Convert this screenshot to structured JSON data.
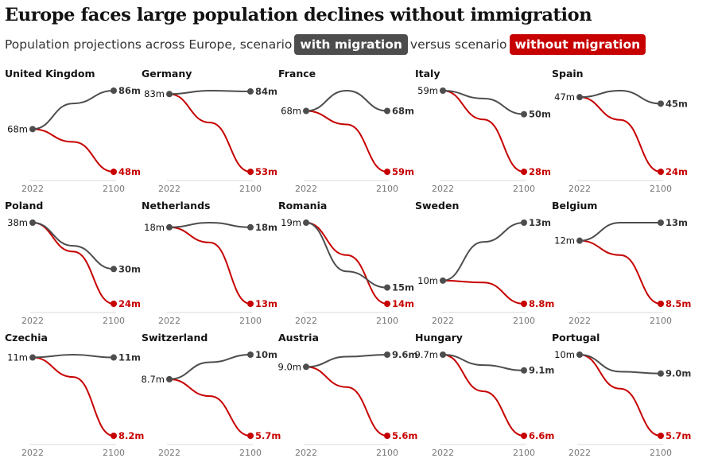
{
  "headline": "Europe faces large population declines without immigration",
  "subtitle": {
    "prefix": "Population projections across Europe, scenario",
    "with_label": "with migration",
    "middle": "versus scenario",
    "without_label": "without migration"
  },
  "colors": {
    "with_migration": "#4d4d4d",
    "without_migration": "#c70000",
    "axis": "#d9d9d9",
    "label": "#121212",
    "tick": "#767676"
  },
  "chart_data": {
    "type": "line",
    "x_ticks": [
      "2022",
      "2100"
    ],
    "series_names": [
      "with migration",
      "without migration"
    ],
    "panels": [
      {
        "country": "United Kingdom",
        "start": "68m",
        "with": [
          68,
          80,
          86
        ],
        "without": [
          68,
          62,
          48
        ],
        "with_end": "86m",
        "without_end": "48m"
      },
      {
        "country": "Germany",
        "start": "83m",
        "with": [
          83,
          84.3,
          84
        ],
        "without": [
          83,
          72,
          53
        ],
        "with_end": "84m",
        "without_end": "53m"
      },
      {
        "country": "France",
        "start": "68m",
        "with": [
          68,
          71,
          68
        ],
        "without": [
          68,
          66,
          59
        ],
        "with_end": "68m",
        "without_end": "59m"
      },
      {
        "country": "Italy",
        "start": "59m",
        "with": [
          59,
          56,
          50
        ],
        "without": [
          59,
          48,
          28
        ],
        "with_end": "50m",
        "without_end": "28m"
      },
      {
        "country": "Spain",
        "start": "47m",
        "with": [
          47,
          49,
          45
        ],
        "without": [
          47,
          40,
          24
        ],
        "with_end": "45m",
        "without_end": "24m"
      },
      {
        "country": "Poland",
        "start": "38m",
        "with": [
          38,
          34,
          30
        ],
        "without": [
          38,
          33,
          24
        ],
        "with_end": "30m",
        "without_end": "24m"
      },
      {
        "country": "Netherlands",
        "start": "18m",
        "with": [
          18,
          18.3,
          18
        ],
        "without": [
          18,
          17,
          13
        ],
        "with_end": "18m",
        "without_end": "13m"
      },
      {
        "country": "Romania",
        "start": "19m",
        "with": [
          19,
          16,
          15
        ],
        "without": [
          19,
          17,
          14
        ],
        "with_end": "15m",
        "without_end": "14m"
      },
      {
        "country": "Sweden",
        "start": "10m",
        "with": [
          10,
          12,
          13
        ],
        "without": [
          10,
          9.9,
          8.8
        ],
        "with_end": "13m",
        "without_end": "8.8m"
      },
      {
        "country": "Belgium",
        "start": "12m",
        "with": [
          12,
          13,
          13
        ],
        "without": [
          12,
          11.2,
          8.5
        ],
        "with_end": "13m",
        "without_end": "8.5m"
      },
      {
        "country": "Czechia",
        "start": "11m",
        "with": [
          11,
          11.1,
          11
        ],
        "without": [
          11,
          10.3,
          8.2
        ],
        "with_end": "11m",
        "without_end": "8.2m"
      },
      {
        "country": "Switzerland",
        "start": "8.7m",
        "with": [
          8.7,
          9.6,
          10
        ],
        "without": [
          8.7,
          7.8,
          5.7
        ],
        "with_end": "10m",
        "without_end": "5.7m"
      },
      {
        "country": "Austria",
        "start": "9.0m",
        "with": [
          9,
          9.5,
          9.6
        ],
        "without": [
          9,
          8,
          5.6
        ],
        "with_end": "9.6m",
        "without_end": "5.6m"
      },
      {
        "country": "Hungary",
        "start": "9.7m",
        "with": [
          9.7,
          9.3,
          9.1
        ],
        "without": [
          9.7,
          8.3,
          6.6
        ],
        "with_end": "9.1m",
        "without_end": "6.6m"
      },
      {
        "country": "Portugal",
        "start": "10m",
        "with": [
          10,
          9.1,
          9
        ],
        "without": [
          10,
          8.2,
          5.7
        ],
        "with_end": "9.0m",
        "without_end": "5.7m"
      }
    ]
  }
}
